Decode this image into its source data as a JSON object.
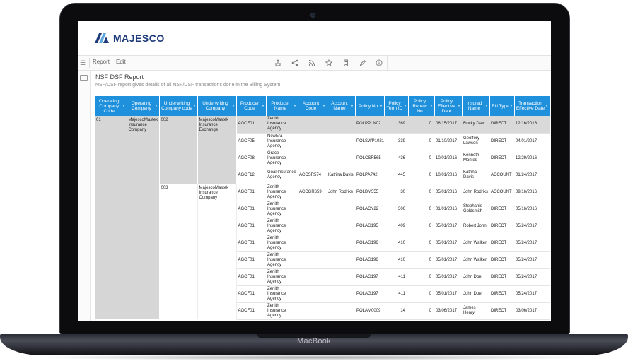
{
  "device": {
    "brand_label": "MacBook"
  },
  "app": {
    "logo_text": "MAJESCO",
    "menu": {
      "report_label": "Report",
      "edit_label": "Edit"
    },
    "toolbar_icons": [
      "export-icon",
      "share-icon",
      "rss-icon",
      "star-icon",
      "bookmark-icon",
      "pen-icon",
      "info-icon"
    ]
  },
  "report": {
    "title": "NSF DSF Report",
    "description": "NSF/DSF report gives details of all NSF/DSF transactions done in the Billing System"
  },
  "table": {
    "columns": [
      "Operating Company Code",
      "Operating Company",
      "Underwriting Company code",
      "Underwriting Company",
      "Producer Code",
      "Producer Name",
      "Account Code",
      "Account Name",
      "Policy No",
      "Policy Term ID",
      "Policy Renew No",
      "Policy Effective Date",
      "Insured Name",
      "Bill Type",
      "Transaction Effective Date"
    ],
    "group": {
      "operating_company_code": "01",
      "operating_company": "MajescoMastek Insurance Company",
      "underwriting": [
        {
          "code": "002",
          "name": "MajescoMastek Insurance Exchange"
        },
        {
          "code": "003",
          "name": "MajescoMastek Insurance Company"
        }
      ]
    },
    "rows": [
      {
        "producer_code": "AGCF01",
        "producer_name": "Zenith Insurance Agency",
        "account_code": "",
        "account_name": "",
        "policy_no": "POLPPLN02",
        "term_id": "369",
        "renew_no": "0",
        "effective_date": "06/15/2017",
        "insured_name": "Rocky Daw",
        "bill_type": "DIRECT",
        "txn_date": "12/16/2016"
      },
      {
        "producer_code": "AGCF05",
        "producer_name": "NewEra Insurance Agency",
        "account_code": "",
        "account_name": "",
        "policy_no": "POLSWP1021",
        "term_id": "339",
        "renew_no": "0",
        "effective_date": "01/10/2017",
        "insured_name": "Geoffery Lawson",
        "bill_type": "DIRECT",
        "txn_date": "04/01/2017"
      },
      {
        "producer_code": "AGCF08",
        "producer_name": "Grace Insurance Agency",
        "account_code": "",
        "account_name": "",
        "policy_no": "POLCSR565",
        "term_id": "436",
        "renew_no": "0",
        "effective_date": "10/01/2016",
        "insured_name": "Kenneth Montes",
        "bill_type": "DIRECT",
        "txn_date": "12/29/2016"
      },
      {
        "producer_code": "AGCF12",
        "producer_name": "Goal Insurance Agency",
        "account_code": "ACCSR574",
        "account_name": "Katrina Davis",
        "policy_no": "POLPA742",
        "term_id": "445",
        "renew_no": "0",
        "effective_date": "10/01/2016",
        "insured_name": "Katrina Davis",
        "bill_type": "ACCOUNT",
        "txn_date": "01/24/2017"
      },
      {
        "producer_code": "AGCF01",
        "producer_name": "Zenith Insurance Agency",
        "account_code": "ACCGR659",
        "account_name": "John Rodriks",
        "policy_no": "POLBM555",
        "term_id": "30",
        "renew_no": "0",
        "effective_date": "05/01/2016",
        "insured_name": "John Rodriks",
        "bill_type": "ACCOUNT",
        "txn_date": "09/16/2016"
      },
      {
        "producer_code": "AGCF01",
        "producer_name": "Zenith Insurance Agency",
        "account_code": "",
        "account_name": "",
        "policy_no": "POLACY22",
        "term_id": "306",
        "renew_no": "0",
        "effective_date": "01/01/2016",
        "insured_name": "Stephanie Goldsmith",
        "bill_type": "DIRECT",
        "txn_date": "05/16/2016"
      },
      {
        "producer_code": "AGCF01",
        "producer_name": "Zenith Insurance Agency",
        "account_code": "",
        "account_name": "",
        "policy_no": "POLAG195",
        "term_id": "409",
        "renew_no": "0",
        "effective_date": "05/01/2017",
        "insured_name": "Robert John",
        "bill_type": "DIRECT",
        "txn_date": "05/24/2017"
      },
      {
        "producer_code": "AGCF01",
        "producer_name": "Zenith Insurance Agency",
        "account_code": "",
        "account_name": "",
        "policy_no": "POLAG196",
        "term_id": "410",
        "renew_no": "0",
        "effective_date": "05/01/2017",
        "insured_name": "John Walker",
        "bill_type": "DIRECT",
        "txn_date": "05/24/2017"
      },
      {
        "producer_code": "AGCF01",
        "producer_name": "Zenith Insurance Agency",
        "account_code": "",
        "account_name": "",
        "policy_no": "POLAG196",
        "term_id": "410",
        "renew_no": "0",
        "effective_date": "05/01/2017",
        "insured_name": "John Walker",
        "bill_type": "DIRECT",
        "txn_date": "05/24/2017"
      },
      {
        "producer_code": "AGCF01",
        "producer_name": "Zenith Insurance Agency",
        "account_code": "",
        "account_name": "",
        "policy_no": "POLAG197",
        "term_id": "411",
        "renew_no": "0",
        "effective_date": "05/01/2017",
        "insured_name": "John Doe",
        "bill_type": "DIRECT",
        "txn_date": "05/24/2017"
      },
      {
        "producer_code": "AGCF01",
        "producer_name": "Zenith Insurance Agency",
        "account_code": "",
        "account_name": "",
        "policy_no": "POLAG197",
        "term_id": "411",
        "renew_no": "0",
        "effective_date": "05/01/2017",
        "insured_name": "John Doe",
        "bill_type": "DIRECT",
        "txn_date": "05/24/2017"
      },
      {
        "producer_code": "AGCF01",
        "producer_name": "Zenith Insurance Agency",
        "account_code": "",
        "account_name": "",
        "policy_no": "POLAM0009",
        "term_id": "14",
        "renew_no": "0",
        "effective_date": "03/06/2017",
        "insured_name": "James Henry",
        "bill_type": "DIRECT",
        "txn_date": "03/06/2017"
      }
    ]
  },
  "colors": {
    "header_blue": "#1e90dc",
    "logo_navy": "#1d3a7a",
    "logo_light": "#5fa8dc",
    "group_gray": "#d6d6d6"
  }
}
